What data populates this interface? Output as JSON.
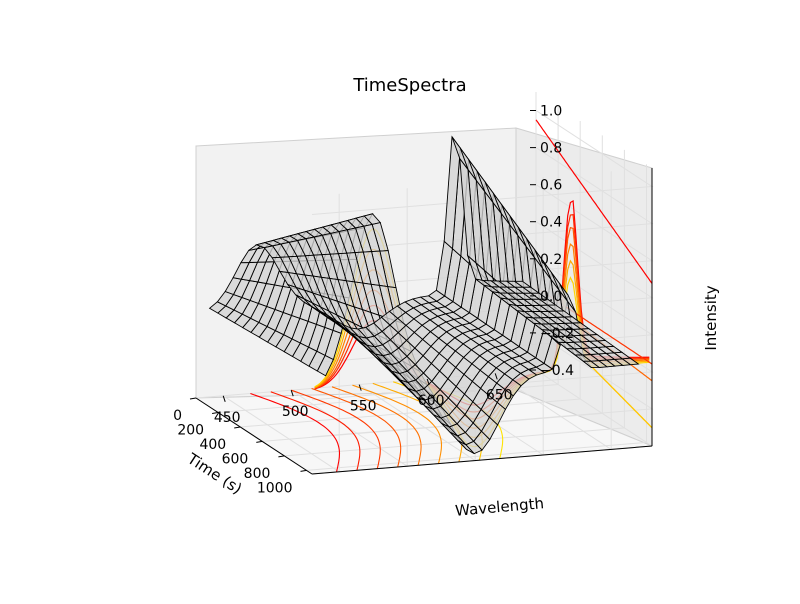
{
  "chart_data": {
    "type": "surface3d",
    "title": "TimeSpectra",
    "xlabel": "Wavelength",
    "ylabel": "Time (s)",
    "zlabel": "Intensity",
    "xlim": [
      430,
      680
    ],
    "ylim": [
      0,
      1050
    ],
    "zlim": [
      -0.4,
      1.1
    ],
    "xticks": [
      "450",
      "500",
      "550",
      "600",
      "650"
    ],
    "yticks": [
      "0",
      "200",
      "400",
      "600",
      "800",
      "1000"
    ],
    "zticks": [
      "−0.4",
      "−0.2",
      "0.0",
      "0.2",
      "0.4",
      "0.6",
      "0.8",
      "1.0"
    ],
    "xtick_values": [
      450,
      500,
      550,
      600,
      650
    ],
    "ytick_values": [
      0,
      200,
      400,
      600,
      800,
      1000
    ],
    "ztick_values": [
      -0.4,
      -0.2,
      0.0,
      0.2,
      0.4,
      0.6,
      0.8,
      1.0
    ],
    "wavelength_peak": 620,
    "wavelength_secondary_peak": 475,
    "trough_wavelength": 550,
    "surface_color": "#d3d3d3",
    "grid_color": "#000000",
    "colormap": "autumn",
    "grid": true,
    "projections": [
      "contour-bottom",
      "contour-back-wall",
      "contour-side-wall"
    ]
  }
}
